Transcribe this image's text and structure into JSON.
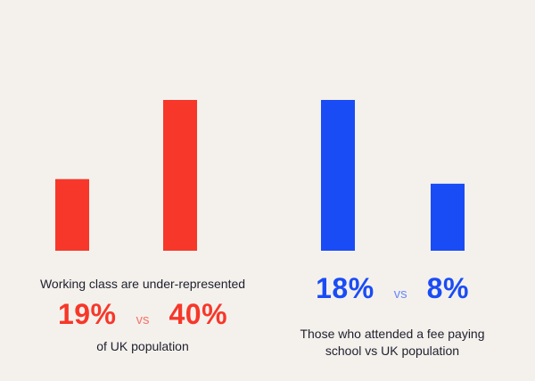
{
  "colors": {
    "background": "#f4f1ec",
    "red": "#f7372a",
    "red_soft": "#f5776d",
    "blue": "#1a4cf5",
    "blue_soft": "#6f8cf7",
    "text": "#1f1f2e"
  },
  "chart_data": [
    {
      "type": "bar",
      "categories": [
        "",
        ""
      ],
      "values": [
        19,
        40
      ],
      "ylim": [
        0,
        40
      ],
      "grid": false,
      "color": "#f7372a",
      "caption_top": "Working class are under-represented",
      "stat_left": "19%",
      "vs_label": "vs",
      "stat_right": "40%",
      "caption_bottom": "of UK population"
    },
    {
      "type": "bar",
      "categories": [
        "",
        ""
      ],
      "values": [
        18,
        8
      ],
      "ylim": [
        0,
        18
      ],
      "grid": false,
      "color": "#1a4cf5",
      "stat_left": "18%",
      "vs_label": "vs",
      "stat_right": "8%",
      "caption_line1": "Those who attended a fee paying",
      "caption_line2": "school vs UK population"
    }
  ]
}
